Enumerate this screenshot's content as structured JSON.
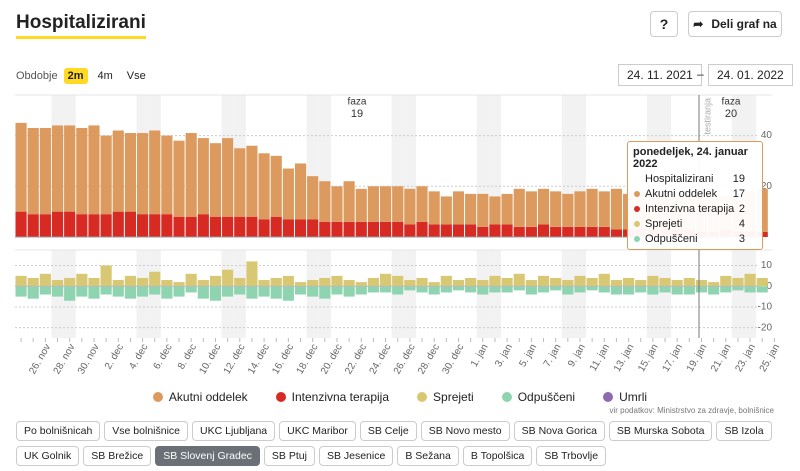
{
  "header": {
    "title": "Hospitalizirani",
    "help": "?",
    "share": "Deli graf na"
  },
  "period": {
    "label": "Obdobje",
    "options": [
      "2m",
      "4m",
      "Vse"
    ],
    "from": "24. 11. 2021",
    "dash": "–",
    "to": "24. 01. 2022"
  },
  "annotations": [
    "faza",
    "19",
    "faza",
    "20",
    "testiranja"
  ],
  "tooltip": {
    "date": "ponedeljek, 24. januar 2022",
    "rows": [
      {
        "name": "Hospitalizirani",
        "value": 19
      },
      {
        "name": "Akutni oddelek",
        "value": 17,
        "color": "#dc9a5e"
      },
      {
        "name": "Intenzivna terapija",
        "value": 2,
        "color": "#d62a23"
      },
      {
        "name": "Sprejeti",
        "value": 4,
        "color": "#d8c873"
      },
      {
        "name": "Odpuščeni",
        "value": 3,
        "color": "#8fd4b0"
      }
    ]
  },
  "chart_data": [
    {
      "type": "bar",
      "stacked": true,
      "categories": [
        null,
        null,
        "26. nov",
        null,
        "28. nov",
        null,
        "30. nov",
        null,
        "2. dec",
        null,
        "4. dec",
        null,
        "6. dec",
        null,
        "8. dec",
        null,
        "10. dec",
        null,
        "12. dec",
        null,
        "14. dec",
        null,
        "16. dec",
        null,
        "18. dec",
        null,
        "20. dec",
        null,
        "22. dec",
        null,
        "24. dec",
        null,
        "26. dec",
        null,
        "28. dec",
        null,
        "30. dec",
        null,
        "1. jan",
        null,
        "3. jan",
        null,
        "5. jan",
        null,
        "7. jan",
        null,
        "9. jan",
        null,
        "11. jan",
        null,
        "13. jan",
        null,
        "15. jan",
        null,
        "17. jan",
        null,
        "19. jan",
        null,
        "21. jan",
        null,
        "23. jan",
        null,
        "25. jan"
      ],
      "series": [
        {
          "name": "Intenzivna terapija",
          "color": "#d62a23",
          "values": [
            10,
            9,
            9,
            10,
            10,
            9,
            9,
            9,
            10,
            10,
            9,
            9,
            9,
            8,
            8,
            9,
            8,
            8,
            8,
            8,
            7,
            8,
            7,
            7,
            7,
            6,
            6,
            6,
            6,
            6,
            6,
            6,
            5,
            6,
            5,
            5,
            5,
            5,
            4,
            5,
            5,
            4,
            4,
            5,
            4,
            4,
            4,
            4,
            4,
            3,
            3,
            3,
            3,
            3,
            3,
            3,
            2,
            2,
            3,
            2,
            2,
            2,
            null
          ]
        },
        {
          "name": "Akutni oddelek",
          "color": "#dc9a5e",
          "values": [
            35,
            34,
            34,
            34,
            34,
            34,
            35,
            31,
            32,
            31,
            32,
            33,
            31,
            30,
            33,
            30,
            29,
            31,
            27,
            28,
            26,
            24,
            20,
            22,
            17,
            16,
            14,
            16,
            13,
            14,
            14,
            14,
            14,
            14,
            13,
            11,
            13,
            12,
            13,
            11,
            12,
            15,
            14,
            14,
            14,
            13,
            14,
            15,
            14,
            16,
            14,
            14,
            15,
            14,
            13,
            13,
            14,
            13,
            13,
            14,
            16,
            17,
            null
          ]
        }
      ],
      "ylim": [
        0,
        56
      ],
      "yticks": [
        20,
        40
      ],
      "grid": true
    },
    {
      "type": "bar",
      "stacked": true,
      "series": [
        {
          "name": "Sprejeti",
          "color": "#d8c873",
          "values": [
            5,
            4,
            6,
            3,
            4,
            6,
            4,
            10,
            3,
            5,
            4,
            7,
            3,
            2,
            6,
            3,
            5,
            8,
            4,
            12,
            3,
            4,
            5,
            2,
            3,
            4,
            5,
            3,
            2,
            4,
            6,
            5,
            3,
            4,
            2,
            5,
            3,
            4,
            3,
            5,
            4,
            6,
            3,
            5,
            4,
            3,
            5,
            4,
            6,
            3,
            4,
            3,
            5,
            4,
            3,
            4,
            3,
            2,
            5,
            4,
            6,
            4,
            null
          ]
        },
        {
          "name": "Odpuščeni",
          "color": "#8fd4b0",
          "values": [
            -5,
            -6,
            -4,
            -5,
            -7,
            -5,
            -6,
            -4,
            -5,
            -6,
            -5,
            -4,
            -6,
            -5,
            -3,
            -6,
            -7,
            -5,
            -4,
            -6,
            -5,
            -6,
            -7,
            -4,
            -5,
            -6,
            -4,
            -5,
            -4,
            -3,
            -3,
            -4,
            -2,
            -3,
            -4,
            -3,
            -2,
            -3,
            -4,
            -3,
            -3,
            -2,
            -4,
            -3,
            -2,
            -4,
            -3,
            -2,
            -3,
            -4,
            -4,
            -3,
            -4,
            -3,
            -4,
            -4,
            -3,
            -4,
            -3,
            -2,
            -3,
            -3,
            null
          ]
        },
        {
          "name": "Umrli",
          "color": "#8e6bb0",
          "values": [
            0,
            0,
            0,
            0,
            0,
            0,
            0,
            0,
            0,
            0,
            0,
            0,
            0,
            0,
            0,
            0,
            0,
            0,
            0,
            0,
            0,
            0,
            0,
            0,
            0,
            0,
            0,
            0,
            0,
            0,
            0,
            0,
            0,
            0,
            0,
            0,
            0,
            0,
            0,
            0,
            0,
            0,
            0,
            0,
            0,
            0,
            0,
            0,
            0,
            0,
            0,
            0,
            0,
            0,
            0,
            0,
            0,
            0,
            0,
            0,
            0,
            0,
            null
          ]
        }
      ],
      "ylim": [
        -25,
        17.5
      ],
      "yticks": [
        -20,
        -10,
        0,
        10
      ],
      "grid": true
    }
  ],
  "legend_order": [
    1,
    0
  ],
  "source": "vir podatkov: Ministrstvo za zdravje, bolnišnice",
  "buttons": [
    "Po bolnišnicah",
    "Vse bolnišnice",
    "UKC Ljubljana",
    "UKC Maribor",
    "SB Celje",
    "SB Novo mesto",
    "SB Nova Gorica",
    "SB Murska Sobota",
    "SB Izola",
    "UK Golnik",
    "SB Brežice",
    "SB Slovenj Gradec",
    "SB Ptuj",
    "SB Jesenice",
    "B Sežana",
    "B Topolšica",
    "SB Trbovlje"
  ],
  "selected_button": 11
}
